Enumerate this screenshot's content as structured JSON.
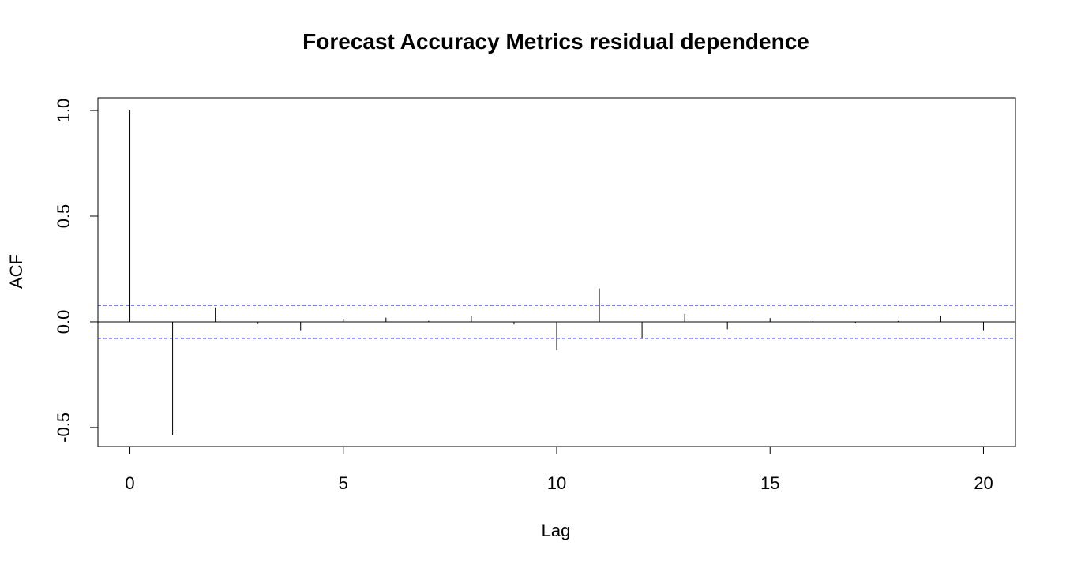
{
  "chart_data": {
    "type": "bar",
    "title": "Forecast Accuracy Metrics residual dependence",
    "xlabel": "Lag",
    "ylabel": "ACF",
    "x": [
      0,
      1,
      2,
      3,
      4,
      5,
      6,
      7,
      8,
      9,
      10,
      11,
      12,
      13,
      14,
      15,
      16,
      17,
      18,
      19,
      20
    ],
    "values": [
      1.0,
      -0.535,
      0.068,
      -0.01,
      -0.04,
      0.015,
      0.02,
      0.005,
      0.028,
      -0.012,
      -0.135,
      0.158,
      -0.08,
      0.038,
      -0.035,
      0.018,
      0.003,
      -0.008,
      0.004,
      0.03,
      -0.04
    ],
    "confidence_bound": 0.078,
    "xlim": [
      -0.75,
      20.75
    ],
    "ylim": [
      -0.59,
      1.06
    ],
    "x_ticks": [
      0,
      5,
      10,
      15,
      20
    ],
    "y_ticks": [
      -0.5,
      0.0,
      0.5,
      1.0
    ],
    "x_tick_labels": [
      "0",
      "5",
      "10",
      "15",
      "20"
    ],
    "y_tick_labels": [
      "-0.5",
      "0.0",
      "0.5",
      "1.0"
    ],
    "colors": {
      "bars": "#000000",
      "bounds": "#0000cc",
      "zero_line": "#000000"
    },
    "grid": false,
    "legend": "none"
  }
}
